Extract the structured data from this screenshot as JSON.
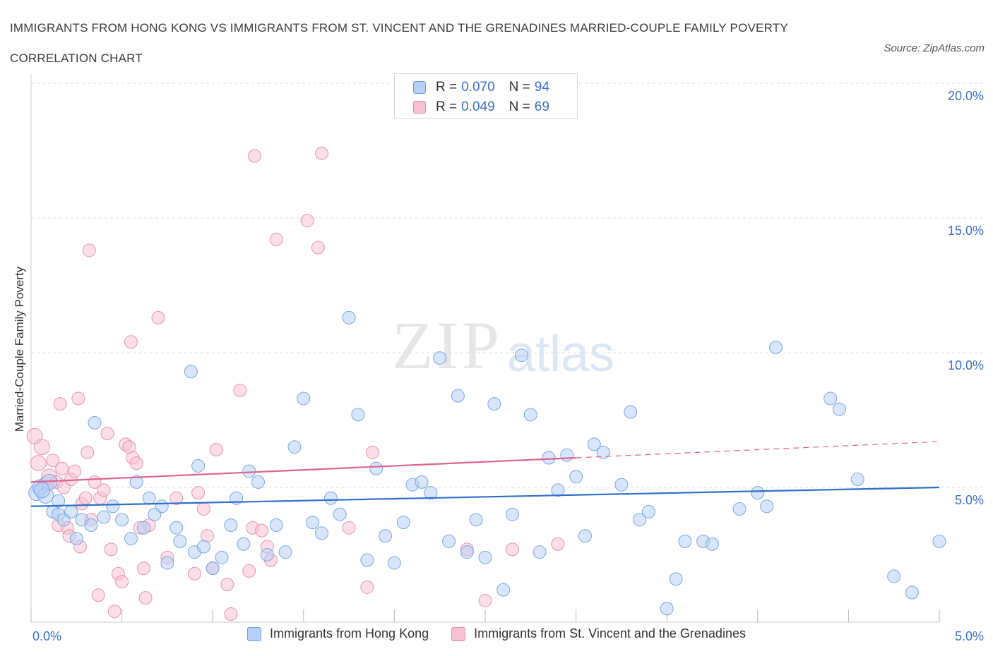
{
  "title": "IMMIGRANTS FROM HONG KONG VS IMMIGRANTS FROM ST. VINCENT AND THE GRENADINES MARRIED-COUPLE FAMILY POVERTY CORRELATION CHART",
  "source": "Source: ZipAtlas.com",
  "watermark": {
    "zip": "ZIP",
    "atlas": "atlas"
  },
  "legend": {
    "rows": [
      {
        "r_label": "R =",
        "r_value": "0.070",
        "n_label": "N =",
        "n_value": "94"
      },
      {
        "r_label": "R =",
        "r_value": "0.049",
        "n_label": "N =",
        "n_value": "69"
      }
    ]
  },
  "colors": {
    "blue_fill": "#b8d0f5",
    "blue_stroke": "#6f9ee0",
    "blue_line": "#2f6fcc",
    "pink_fill": "#f7c3d3",
    "pink_stroke": "#e48aa9",
    "pink_line": "#e0628e",
    "tick_text": "#3b6fc7",
    "grid": "#dddddd"
  },
  "chart_data": {
    "type": "scatter",
    "xlabel": "",
    "ylabel": "Married-Couple Family Poverty",
    "xlim": [
      0,
      5
    ],
    "ylim": [
      0,
      20
    ],
    "x_ticks": [
      "0.0%",
      "5.0%"
    ],
    "y_ticks": [
      "5.0%",
      "10.0%",
      "15.0%",
      "20.0%"
    ],
    "grid": true,
    "legend_position": "top-center",
    "series": [
      {
        "name": "Immigrants from Hong Kong",
        "color": "#6f9ee0",
        "trend": {
          "x": [
            0,
            5
          ],
          "y": [
            4.3,
            5.0
          ],
          "dashed_from": null
        },
        "points": [
          [
            0.03,
            4.8
          ],
          [
            0.05,
            5.0
          ],
          [
            0.08,
            4.7
          ],
          [
            0.1,
            5.2
          ],
          [
            0.12,
            4.1
          ],
          [
            0.15,
            4.0
          ],
          [
            0.18,
            3.8
          ],
          [
            0.22,
            4.1
          ],
          [
            0.25,
            3.1
          ],
          [
            0.28,
            3.8
          ],
          [
            0.33,
            3.6
          ],
          [
            0.4,
            3.9
          ],
          [
            0.45,
            4.3
          ],
          [
            0.5,
            3.8
          ],
          [
            0.55,
            3.1
          ],
          [
            0.58,
            5.2
          ],
          [
            0.62,
            3.5
          ],
          [
            0.65,
            4.6
          ],
          [
            0.68,
            4.0
          ],
          [
            0.72,
            4.3
          ],
          [
            0.75,
            2.2
          ],
          [
            0.8,
            3.5
          ],
          [
            0.82,
            3.0
          ],
          [
            0.88,
            9.3
          ],
          [
            0.9,
            2.6
          ],
          [
            0.92,
            5.8
          ],
          [
            0.95,
            2.8
          ],
          [
            1.0,
            2.0
          ],
          [
            1.05,
            2.4
          ],
          [
            1.1,
            3.6
          ],
          [
            1.13,
            4.6
          ],
          [
            1.17,
            2.9
          ],
          [
            1.2,
            5.6
          ],
          [
            1.25,
            5.2
          ],
          [
            1.3,
            2.5
          ],
          [
            1.35,
            3.6
          ],
          [
            1.4,
            2.6
          ],
          [
            1.45,
            6.5
          ],
          [
            1.5,
            8.3
          ],
          [
            1.55,
            3.7
          ],
          [
            1.6,
            3.3
          ],
          [
            1.65,
            4.6
          ],
          [
            1.7,
            4.0
          ],
          [
            1.75,
            11.3
          ],
          [
            1.8,
            7.7
          ],
          [
            1.85,
            2.3
          ],
          [
            1.9,
            5.7
          ],
          [
            1.95,
            3.2
          ],
          [
            2.0,
            2.2
          ],
          [
            2.05,
            3.7
          ],
          [
            2.1,
            5.1
          ],
          [
            2.15,
            5.2
          ],
          [
            2.2,
            4.8
          ],
          [
            2.25,
            9.8
          ],
          [
            2.3,
            3.0
          ],
          [
            2.35,
            8.4
          ],
          [
            2.4,
            2.6
          ],
          [
            2.45,
            3.8
          ],
          [
            2.5,
            2.4
          ],
          [
            2.55,
            8.1
          ],
          [
            2.6,
            1.2
          ],
          [
            2.65,
            4.0
          ],
          [
            2.7,
            9.9
          ],
          [
            2.75,
            7.7
          ],
          [
            2.8,
            2.6
          ],
          [
            2.85,
            6.1
          ],
          [
            2.9,
            4.9
          ],
          [
            2.95,
            6.2
          ],
          [
            3.0,
            5.4
          ],
          [
            3.05,
            3.2
          ],
          [
            3.1,
            6.6
          ],
          [
            3.15,
            6.3
          ],
          [
            3.25,
            5.1
          ],
          [
            3.3,
            7.8
          ],
          [
            3.35,
            3.8
          ],
          [
            3.4,
            4.1
          ],
          [
            3.5,
            0.5
          ],
          [
            3.55,
            1.6
          ],
          [
            3.6,
            3.0
          ],
          [
            3.7,
            3.0
          ],
          [
            3.75,
            2.9
          ],
          [
            3.9,
            4.2
          ],
          [
            4.0,
            4.8
          ],
          [
            4.05,
            4.3
          ],
          [
            4.1,
            10.2
          ],
          [
            4.4,
            8.3
          ],
          [
            4.45,
            7.9
          ],
          [
            4.55,
            5.3
          ],
          [
            4.75,
            1.7
          ],
          [
            4.85,
            1.1
          ],
          [
            5.0,
            3.0
          ],
          [
            0.06,
            4.9
          ],
          [
            0.35,
            7.4
          ],
          [
            0.15,
            4.5
          ]
        ]
      },
      {
        "name": "Immigrants from St. Vincent and the Grenadines",
        "color": "#e48aa9",
        "trend": {
          "x": [
            0,
            5
          ],
          "y": [
            5.2,
            6.7
          ],
          "dashed_from": 3.0
        },
        "points": [
          [
            0.02,
            6.9
          ],
          [
            0.04,
            5.9
          ],
          [
            0.06,
            6.5
          ],
          [
            0.08,
            5.1
          ],
          [
            0.1,
            5.4
          ],
          [
            0.12,
            6.0
          ],
          [
            0.14,
            5.2
          ],
          [
            0.15,
            3.6
          ],
          [
            0.16,
            8.1
          ],
          [
            0.17,
            5.7
          ],
          [
            0.18,
            5.0
          ],
          [
            0.2,
            3.5
          ],
          [
            0.21,
            3.2
          ],
          [
            0.22,
            5.3
          ],
          [
            0.24,
            5.6
          ],
          [
            0.26,
            8.3
          ],
          [
            0.27,
            2.8
          ],
          [
            0.28,
            4.4
          ],
          [
            0.3,
            4.6
          ],
          [
            0.31,
            6.3
          ],
          [
            0.32,
            13.8
          ],
          [
            0.33,
            3.8
          ],
          [
            0.35,
            5.2
          ],
          [
            0.37,
            1.0
          ],
          [
            0.38,
            4.6
          ],
          [
            0.4,
            4.9
          ],
          [
            0.42,
            7.0
          ],
          [
            0.44,
            2.7
          ],
          [
            0.46,
            0.4
          ],
          [
            0.48,
            1.8
          ],
          [
            0.5,
            1.5
          ],
          [
            0.52,
            6.6
          ],
          [
            0.54,
            6.5
          ],
          [
            0.55,
            10.4
          ],
          [
            0.56,
            6.1
          ],
          [
            0.58,
            5.9
          ],
          [
            0.6,
            3.5
          ],
          [
            0.62,
            2.0
          ],
          [
            0.63,
            0.9
          ],
          [
            0.65,
            3.6
          ],
          [
            0.7,
            11.3
          ],
          [
            0.75,
            2.4
          ],
          [
            0.8,
            4.6
          ],
          [
            0.9,
            1.8
          ],
          [
            0.92,
            4.8
          ],
          [
            0.95,
            4.2
          ],
          [
            0.97,
            3.2
          ],
          [
            1.0,
            2.0
          ],
          [
            1.02,
            6.4
          ],
          [
            1.08,
            1.4
          ],
          [
            1.1,
            0.3
          ],
          [
            1.15,
            8.6
          ],
          [
            1.2,
            1.9
          ],
          [
            1.22,
            3.5
          ],
          [
            1.23,
            17.3
          ],
          [
            1.27,
            3.4
          ],
          [
            1.3,
            2.8
          ],
          [
            1.32,
            2.3
          ],
          [
            1.35,
            14.2
          ],
          [
            1.52,
            14.9
          ],
          [
            1.58,
            13.9
          ],
          [
            1.6,
            17.4
          ],
          [
            1.75,
            3.5
          ],
          [
            1.85,
            1.3
          ],
          [
            1.88,
            6.3
          ],
          [
            2.4,
            2.7
          ],
          [
            2.5,
            0.8
          ],
          [
            2.65,
            2.7
          ],
          [
            2.9,
            2.9
          ]
        ]
      }
    ]
  },
  "bottom_legend": [
    {
      "label": "Immigrants from Hong Kong"
    },
    {
      "label": "Immigrants from St. Vincent and the Grenadines"
    }
  ]
}
